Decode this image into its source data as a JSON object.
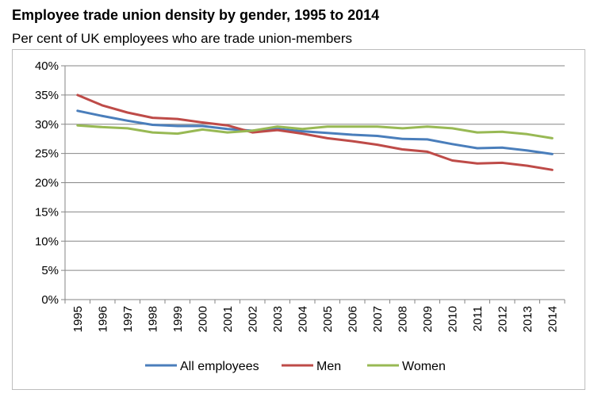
{
  "chart_data": {
    "type": "line",
    "title": "Employee trade union density by gender, 1995 to 2014",
    "subtitle": "Per cent of UK employees who are trade union-members",
    "xlabel": "",
    "ylabel": "",
    "x": [
      "1995",
      "1996",
      "1997",
      "1998",
      "1999",
      "2000",
      "2001",
      "2002",
      "2003",
      "2004",
      "2005",
      "2006",
      "2007",
      "2008",
      "2009",
      "2010",
      "2011",
      "2012",
      "2013",
      "2014"
    ],
    "ylim": [
      0,
      40
    ],
    "yticks": [
      0,
      5,
      10,
      15,
      20,
      25,
      30,
      35,
      40
    ],
    "ytick_labels": [
      "0%",
      "5%",
      "10%",
      "15%",
      "20%",
      "25%",
      "30%",
      "35%",
      "40%"
    ],
    "grid": true,
    "legend_position": "bottom",
    "series": [
      {
        "name": "All employees",
        "color": "#4a7ebb",
        "values": [
          32.3,
          31.4,
          30.6,
          29.9,
          29.7,
          29.7,
          29.2,
          28.9,
          29.2,
          28.8,
          28.5,
          28.2,
          28.0,
          27.5,
          27.4,
          26.6,
          25.9,
          26.0,
          25.5,
          24.9
        ]
      },
      {
        "name": "Men",
        "color": "#be4b48",
        "values": [
          35.0,
          33.2,
          32.0,
          31.1,
          30.9,
          30.3,
          29.8,
          28.6,
          29.0,
          28.4,
          27.6,
          27.1,
          26.5,
          25.7,
          25.3,
          23.8,
          23.3,
          23.4,
          22.9,
          22.2
        ]
      },
      {
        "name": "Women",
        "color": "#98b954",
        "values": [
          29.8,
          29.5,
          29.3,
          28.6,
          28.4,
          29.1,
          28.6,
          28.9,
          29.6,
          29.2,
          29.6,
          29.6,
          29.6,
          29.3,
          29.6,
          29.3,
          28.6,
          28.7,
          28.3,
          27.6
        ]
      }
    ]
  }
}
